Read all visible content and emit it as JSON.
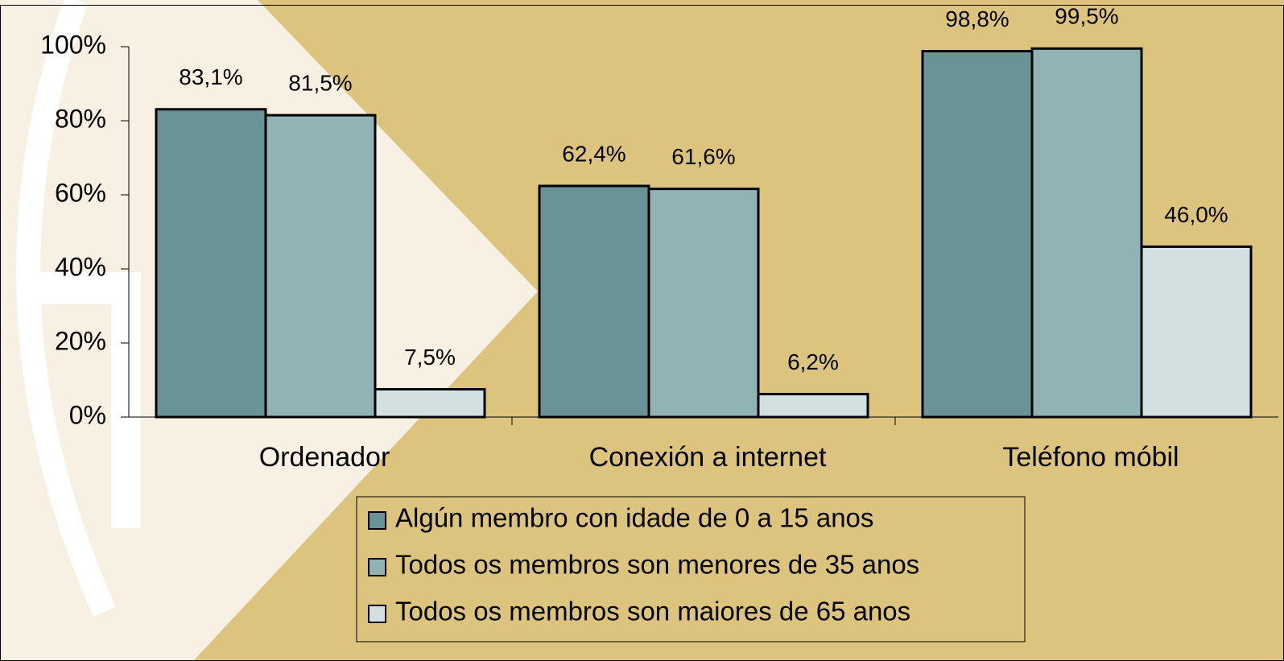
{
  "chart_data": {
    "type": "bar",
    "categories": [
      "Ordenador",
      "Conexión a internet",
      "Teléfono móbil"
    ],
    "series": [
      {
        "name": "Algún membro con idade de 0 a 15 anos",
        "color": "#6a9398",
        "values": [
          83.1,
          62.4,
          98.8
        ],
        "value_labels": [
          "83,1%",
          "62,4%",
          "98,8%"
        ]
      },
      {
        "name": "Todos os membros son menores de 35 anos",
        "color": "#91b3b5",
        "values": [
          81.5,
          61.6,
          99.5
        ],
        "value_labels": [
          "81,5%",
          "61,6%",
          "99,5%"
        ]
      },
      {
        "name": "Todos os membros son maiores de 65 anos",
        "color": "#d3e0e2",
        "values": [
          7.5,
          6.2,
          46.0
        ],
        "value_labels": [
          "7,5%",
          "6,2%",
          "46,0%"
        ]
      }
    ],
    "ylim": [
      0,
      100
    ],
    "yticks": [
      {
        "value": 0,
        "label": "0%"
      },
      {
        "value": 20,
        "label": "20%"
      },
      {
        "value": 40,
        "label": "40%"
      },
      {
        "value": 60,
        "label": "60%"
      },
      {
        "value": 80,
        "label": "80%"
      },
      {
        "value": 100,
        "label": "100%"
      }
    ],
    "legend": "bottom"
  }
}
